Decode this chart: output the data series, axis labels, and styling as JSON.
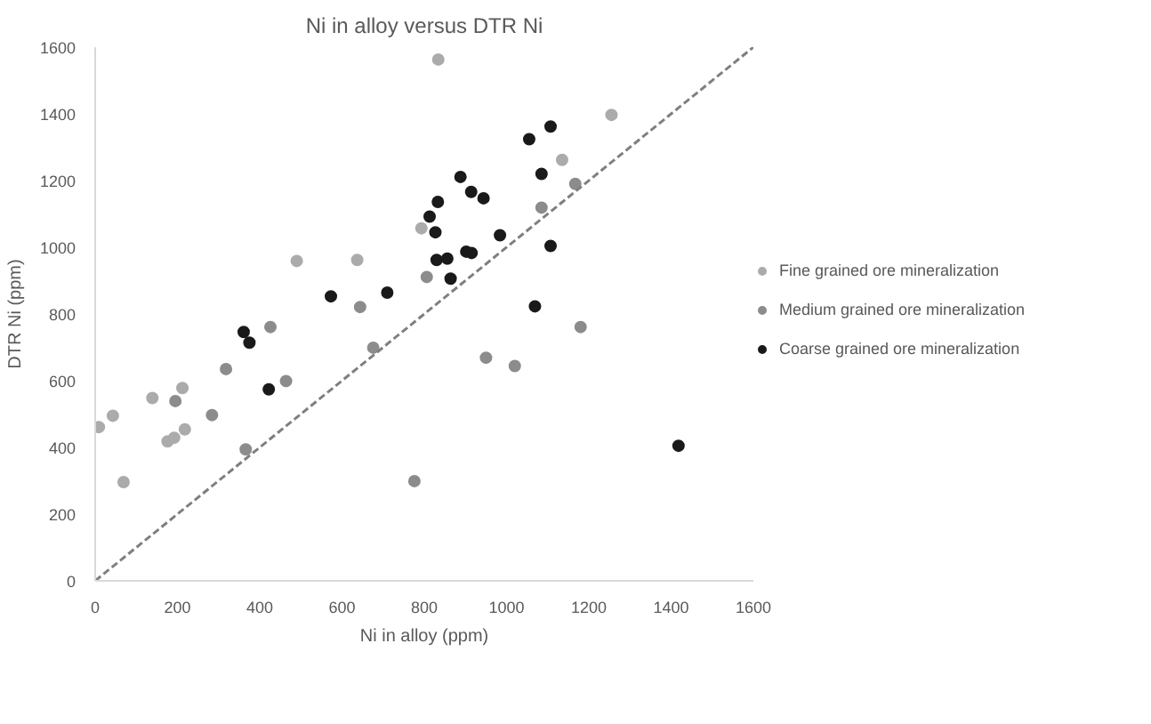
{
  "chart_data": {
    "type": "scatter",
    "title": "Ni in alloy versus DTR Ni",
    "xlabel": "Ni in alloy (ppm)",
    "ylabel": "DTR Ni (ppm)",
    "xlim": [
      0,
      1600
    ],
    "ylim": [
      0,
      1600
    ],
    "xticks": [
      0,
      200,
      400,
      600,
      800,
      1000,
      1200,
      1400,
      1600
    ],
    "yticks": [
      0,
      200,
      400,
      600,
      800,
      1000,
      1200,
      1400,
      1600
    ],
    "grid": false,
    "legend": "right",
    "marker": "circle",
    "series": [
      {
        "name": "Fine grained ore mineralization",
        "color": "#ababab",
        "x": [
          9,
          43,
          69,
          139,
          176,
          192,
          218,
          212,
          490,
          637,
          793,
          834,
          1135,
          1255
        ],
        "values": [
          461,
          495,
          296,
          548,
          418,
          429,
          454,
          578,
          959,
          962,
          1057,
          1563,
          1262,
          1397
        ]
      },
      {
        "name": "Medium grained ore mineralization",
        "color": "#8c8c8c",
        "x": [
          195,
          284,
          318,
          366,
          426,
          464,
          644,
          676,
          776,
          806,
          950,
          1020,
          1085,
          1167,
          1180
        ],
        "values": [
          539,
          497,
          635,
          394,
          761,
          599,
          821,
          699,
          299,
          911,
          669,
          644,
          1119,
          1190,
          761
        ]
      },
      {
        "name": "Coarse grained ore mineralization",
        "color": "#1a1a1a",
        "x": [
          361,
          375,
          422,
          573,
          710,
          833,
          813,
          827,
          830,
          856,
          864,
          888,
          914,
          902,
          915,
          944,
          984,
          1055,
          1107,
          1085,
          1107,
          1069,
          1418
        ],
        "values": [
          746,
          714,
          574,
          853,
          864,
          1136,
          1092,
          1045,
          962,
          966,
          906,
          1211,
          1166,
          987,
          983,
          1147,
          1036,
          1324,
          1362,
          1220,
          1004,
          823,
          405
        ]
      },
      {
        "type": "line",
        "color": "#7f7f7f",
        "line_style": "dashed",
        "marker": "none",
        "x": [
          0,
          1600
        ],
        "values": [
          0,
          1600
        ]
      }
    ]
  }
}
